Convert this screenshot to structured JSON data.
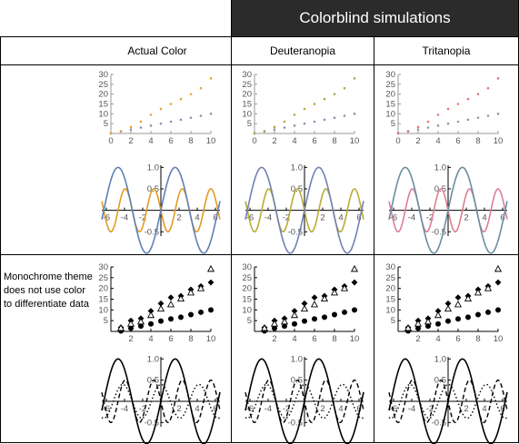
{
  "header": {
    "title": "Colorblind simulations"
  },
  "columns": [
    {
      "title": "Actual Color"
    },
    {
      "title": "Deuteranopia"
    },
    {
      "title": "Tritanopia"
    }
  ],
  "row_note": "Monochrome theme does not use color to differentiate data",
  "palettes": {
    "actual": {
      "series_a": "#e8a33a",
      "series_b": "#8a8fb3",
      "sine": "#5e81b5",
      "cos": "#e19c24"
    },
    "deuteranopia": {
      "series_a": "#b4a64b",
      "series_b": "#8d8fb0",
      "sine": "#7480b2",
      "cos": "#b7ad35"
    },
    "tritanopia": {
      "series_a": "#e07878",
      "series_b": "#8a9aa8",
      "sine": "#6a8ea0",
      "cos": "#dc7f94"
    }
  },
  "chart_data": [
    {
      "type": "scatter",
      "style": "color",
      "x": [
        0,
        1,
        2,
        3,
        4,
        5,
        6,
        7,
        8,
        9,
        10
      ],
      "series": [
        {
          "values": [
            0,
            1,
            2,
            3,
            4,
            5,
            6,
            7,
            8,
            9,
            10
          ],
          "marker": "dot"
        },
        {
          "values": [
            0.2,
            1.2,
            3.3,
            6,
            9.5,
            12.5,
            15,
            17.5,
            20,
            23,
            28
          ],
          "marker": "dot"
        }
      ],
      "xlim": [
        0,
        10
      ],
      "ylim": [
        0,
        30
      ],
      "xticks": [
        "0",
        "2",
        "4",
        "6",
        "8",
        "10"
      ],
      "yticks": [
        "5",
        "10",
        "15",
        "20",
        "25",
        "30"
      ]
    },
    {
      "type": "line",
      "style": "color",
      "functions": [
        "sin(x)",
        "-sin(2x) scaled"
      ],
      "xlim": [
        -6.5,
        6.5
      ],
      "ylim": [
        -0.6,
        1.05
      ],
      "xticks": [
        "-6",
        "-4",
        "-2",
        "2",
        "4",
        "6"
      ],
      "yticks": [
        "1.0",
        "0.5",
        "-0.5"
      ]
    },
    {
      "type": "scatter",
      "style": "monochrome",
      "x": [
        1,
        2,
        3,
        4,
        5,
        6,
        7,
        8,
        9,
        10
      ],
      "series": [
        {
          "values": [
            0.2,
            1.5,
            2.5,
            3.5,
            4.8,
            5.8,
            6.6,
            7.8,
            8.9,
            10
          ],
          "marker": "filled-circle"
        },
        {
          "values": [
            1.8,
            5,
            6,
            9.5,
            13,
            15.8,
            16.5,
            19.5,
            21,
            22.8
          ],
          "marker": "filled-diamond"
        },
        {
          "values": [
            1.5,
            3.5,
            4.5,
            7.5,
            10.5,
            12.5,
            15.2,
            18,
            20,
            29
          ],
          "marker": "open-triangle"
        }
      ],
      "xlim": [
        0,
        10
      ],
      "ylim": [
        0,
        30
      ],
      "xticks": [
        "2",
        "4",
        "6",
        "8",
        "10"
      ],
      "yticks": [
        "5",
        "10",
        "15",
        "20",
        "25",
        "30"
      ]
    },
    {
      "type": "line",
      "style": "monochrome",
      "functions": [
        "sin(x) solid",
        "dashed",
        "dotted"
      ],
      "xlim": [
        -6.5,
        6.5
      ],
      "ylim": [
        -0.6,
        1.05
      ],
      "xticks": [
        "-6",
        "-4",
        "-2",
        "2",
        "4",
        "6"
      ],
      "yticks": [
        "1.0",
        "0.5",
        "-0.5"
      ]
    }
  ]
}
